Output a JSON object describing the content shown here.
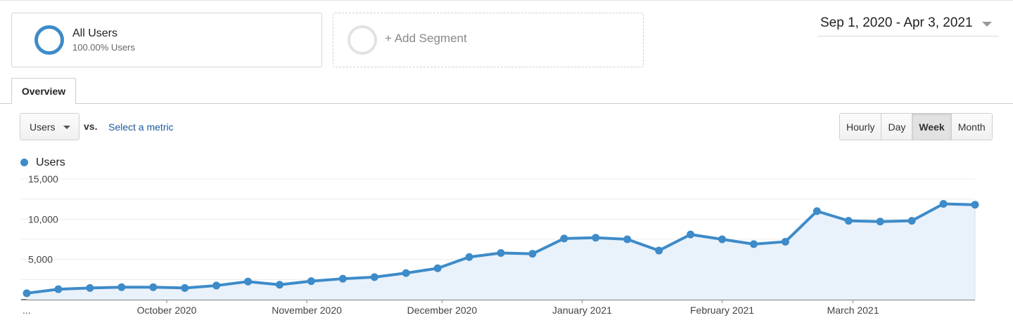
{
  "segments": {
    "primary": {
      "name": "All Users",
      "subtitle": "100.00% Users"
    },
    "add_label": "+ Add Segment"
  },
  "date_range": "Sep 1, 2020 - Apr 3, 2021",
  "tabs": [
    {
      "label": "Overview"
    }
  ],
  "metric": {
    "selected": "Users",
    "vs_label": "vs.",
    "select_link": "Select a metric"
  },
  "granularity": {
    "options": [
      "Hourly",
      "Day",
      "Week",
      "Month"
    ],
    "active": "Week"
  },
  "legend": {
    "label": "Users"
  },
  "colors": {
    "accent": "#3d8bc9",
    "area_fill": "#e9f1fa",
    "link": "#1a5aa0"
  },
  "chart_data": {
    "type": "area",
    "series": [
      {
        "name": "Users",
        "values": [
          800,
          1300,
          1450,
          1550,
          1550,
          1450,
          1750,
          2250,
          1850,
          2300,
          2600,
          2800,
          3300,
          3900,
          5300,
          5800,
          5700,
          7600,
          7700,
          7500,
          6100,
          8100,
          7500,
          6900,
          7200,
          11000,
          9800,
          9700,
          9800,
          11900,
          11800
        ]
      }
    ],
    "y_ticks": [
      "15,000",
      "10,000",
      "5,000"
    ],
    "y_tick_values": [
      15000,
      10000,
      5000
    ],
    "ylim": [
      0,
      15000
    ],
    "x_labels": [
      "...",
      "October 2020",
      "November 2020",
      "December 2020",
      "January 2021",
      "February 2021",
      "March 2021"
    ],
    "x_label_indices": [
      0,
      4.43,
      8.86,
      13.14,
      17.57,
      22,
      26.14
    ],
    "grid": true,
    "legend_position": "top-left"
  }
}
